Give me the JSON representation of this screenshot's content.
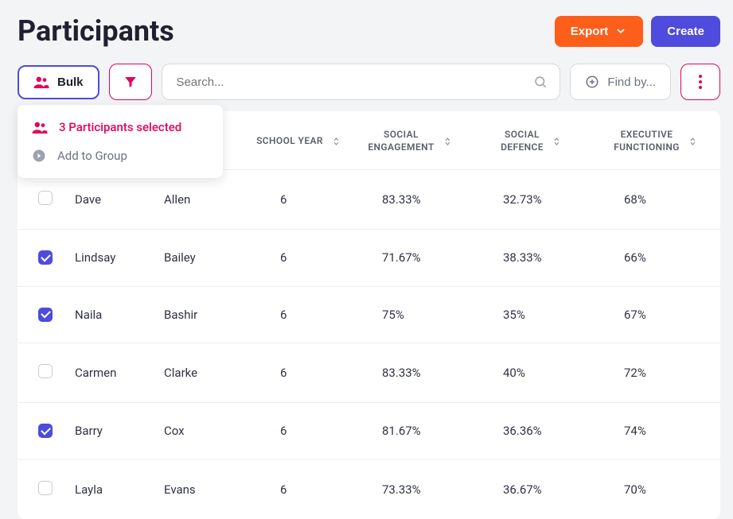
{
  "header": {
    "title": "Participants",
    "export_label": "Export",
    "create_label": "Create"
  },
  "toolbar": {
    "bulk_label": "Bulk",
    "search_placeholder": "Search...",
    "findby_label": "Find by...",
    "dropdown": {
      "selected_text": "3 Participants selected",
      "add_to_group": "Add to Group"
    }
  },
  "colors": {
    "accent_orange": "#fd5e1a",
    "accent_indigo": "#4e4bdd",
    "accent_pink": "#e6005a",
    "border_gray": "#d6d8de",
    "text_muted": "#6b7280",
    "row_border": "#eceef2",
    "bg": "#f3f4f6"
  },
  "table": {
    "columns": {
      "school_year": "SCHOOL YEAR",
      "social_engagement": "SOCIAL ENGAGEMENT",
      "social_defence": "SOCIAL DEFENCE",
      "executive_functioning": "EXECUTIVE FUNCTIONING"
    },
    "rows": [
      {
        "checked": false,
        "first": "Dave",
        "last": "Allen",
        "year": "6",
        "se": "83.33%",
        "sd": "32.73%",
        "ef": "68%"
      },
      {
        "checked": true,
        "first": "Lindsay",
        "last": "Bailey",
        "year": "6",
        "se": "71.67%",
        "sd": "38.33%",
        "ef": "66%"
      },
      {
        "checked": true,
        "first": "Naila",
        "last": "Bashir",
        "year": "6",
        "se": "75%",
        "sd": "35%",
        "ef": "67%"
      },
      {
        "checked": false,
        "first": "Carmen",
        "last": "Clarke",
        "year": "6",
        "se": "83.33%",
        "sd": "40%",
        "ef": "72%"
      },
      {
        "checked": true,
        "first": "Barry",
        "last": "Cox",
        "year": "6",
        "se": "81.67%",
        "sd": "36.36%",
        "ef": "74%"
      },
      {
        "checked": false,
        "first": "Layla",
        "last": "Evans",
        "year": "6",
        "se": "73.33%",
        "sd": "36.67%",
        "ef": "70%"
      }
    ]
  }
}
